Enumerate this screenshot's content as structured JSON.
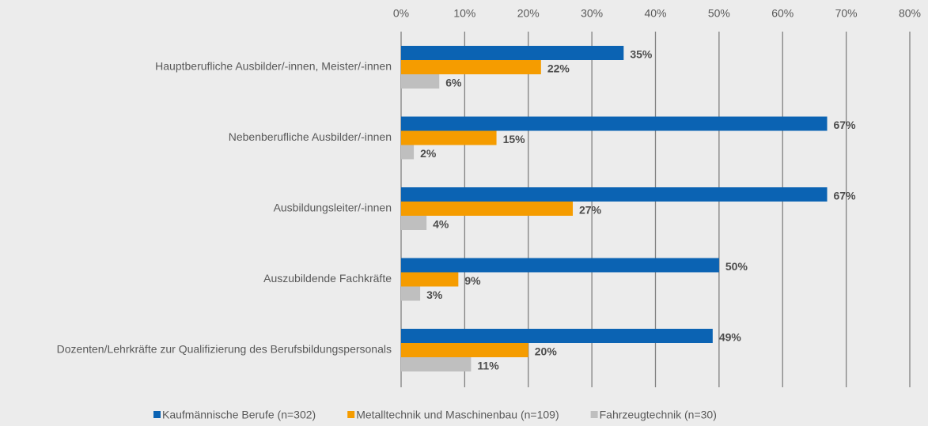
{
  "chart_data": {
    "type": "bar",
    "orientation": "horizontal",
    "categories": [
      "Hauptberufliche Ausbilder/-innen, Meister/-innen",
      "Nebenberufliche Ausbilder/-innen",
      "Ausbildungsleiter/-innen",
      "Auszubildende Fachkräfte",
      "Dozenten/Lehrkräfte zur Qualifizierung des Berufsbildungspersonals"
    ],
    "series": [
      {
        "name": "Kaufmännische Berufe (n=302)",
        "color": "#0b63b3",
        "values": [
          35,
          67,
          67,
          50,
          49
        ],
        "value_labels": [
          "35%",
          "67%",
          "67%",
          "50%",
          "49%"
        ]
      },
      {
        "name": "Metalltechnik und Maschinenbau (n=109)",
        "color": "#f59c00",
        "values": [
          22,
          15,
          27,
          9,
          20
        ],
        "value_labels": [
          "22%",
          "15%",
          "27%",
          "9%",
          "20%"
        ]
      },
      {
        "name": "Fahrzeugtechnik (n=30)",
        "color": "#bfbfbf",
        "values": [
          6,
          2,
          4,
          3,
          11
        ],
        "value_labels": [
          "6%",
          "2%",
          "4%",
          "3%",
          "11%"
        ]
      }
    ],
    "xlim": [
      0,
      80
    ],
    "xticks": [
      {
        "value": 0,
        "label": "0%"
      },
      {
        "value": 10,
        "label": "10%"
      },
      {
        "value": 20,
        "label": "20%"
      },
      {
        "value": 30,
        "label": "30%"
      },
      {
        "value": 40,
        "label": "40%"
      },
      {
        "value": 50,
        "label": "50%"
      },
      {
        "value": 60,
        "label": "60%"
      },
      {
        "value": 70,
        "label": "70%"
      },
      {
        "value": 80,
        "label": "80%"
      }
    ],
    "grid": true,
    "legend": "bottom"
  }
}
